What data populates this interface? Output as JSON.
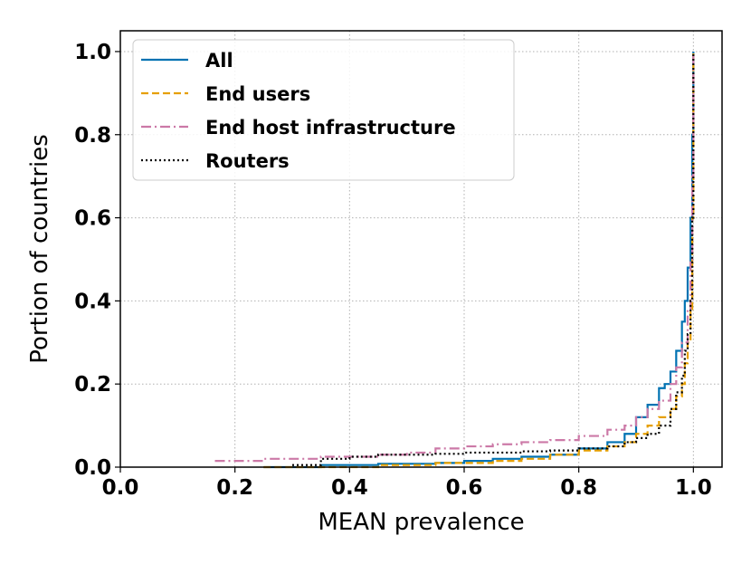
{
  "chart_data": {
    "type": "line",
    "xlabel": "MEAN prevalence",
    "ylabel": "Portion of countries",
    "xlim": [
      0.0,
      1.05
    ],
    "ylim": [
      0.0,
      1.05
    ],
    "xticks": [
      "0.0",
      "0.2",
      "0.4",
      "0.6",
      "0.8",
      "1.0"
    ],
    "yticks": [
      "0.0",
      "0.2",
      "0.4",
      "0.6",
      "0.8",
      "1.0"
    ],
    "grid": true,
    "legend_position": "top-left",
    "series": [
      {
        "name": "All",
        "color": "#0072B2",
        "dash": "solid",
        "x": [
          0.25,
          0.35,
          0.45,
          0.55,
          0.6,
          0.65,
          0.7,
          0.75,
          0.8,
          0.85,
          0.88,
          0.9,
          0.92,
          0.94,
          0.95,
          0.96,
          0.97,
          0.98,
          0.985,
          0.99,
          0.995,
          0.998,
          1.0
        ],
        "y": [
          0.0,
          0.005,
          0.008,
          0.01,
          0.015,
          0.02,
          0.025,
          0.03,
          0.045,
          0.06,
          0.08,
          0.12,
          0.15,
          0.19,
          0.2,
          0.23,
          0.28,
          0.35,
          0.4,
          0.48,
          0.6,
          0.8,
          1.0
        ]
      },
      {
        "name": "End users",
        "color": "#E69F00",
        "dash": "dashed",
        "x": [
          0.25,
          0.35,
          0.45,
          0.55,
          0.6,
          0.65,
          0.7,
          0.75,
          0.8,
          0.85,
          0.88,
          0.9,
          0.92,
          0.94,
          0.96,
          0.97,
          0.98,
          0.985,
          0.99,
          0.995,
          0.998,
          1.0
        ],
        "y": [
          0.0,
          0.0,
          0.005,
          0.01,
          0.01,
          0.015,
          0.02,
          0.03,
          0.04,
          0.05,
          0.06,
          0.08,
          0.1,
          0.12,
          0.14,
          0.17,
          0.2,
          0.25,
          0.3,
          0.38,
          0.6,
          1.0
        ]
      },
      {
        "name": "End host infrastructure",
        "color": "#CC79A7",
        "dash": "dashdot",
        "x": [
          0.165,
          0.2,
          0.25,
          0.3,
          0.35,
          0.4,
          0.45,
          0.5,
          0.55,
          0.6,
          0.65,
          0.7,
          0.75,
          0.8,
          0.85,
          0.88,
          0.9,
          0.92,
          0.94,
          0.96,
          0.97,
          0.98,
          0.99,
          0.995,
          0.998,
          1.0
        ],
        "y": [
          0.015,
          0.015,
          0.02,
          0.02,
          0.025,
          0.025,
          0.03,
          0.035,
          0.045,
          0.05,
          0.055,
          0.06,
          0.065,
          0.075,
          0.09,
          0.1,
          0.12,
          0.14,
          0.16,
          0.2,
          0.24,
          0.3,
          0.38,
          0.5,
          0.7,
          1.0
        ]
      },
      {
        "name": "Routers",
        "color": "#000000",
        "dash": "dotted",
        "x": [
          0.3,
          0.35,
          0.4,
          0.45,
          0.5,
          0.55,
          0.6,
          0.65,
          0.7,
          0.75,
          0.8,
          0.85,
          0.88,
          0.9,
          0.92,
          0.94,
          0.96,
          0.97,
          0.98,
          0.985,
          0.99,
          0.995,
          0.998,
          1.0
        ],
        "y": [
          0.005,
          0.02,
          0.025,
          0.03,
          0.03,
          0.032,
          0.035,
          0.035,
          0.038,
          0.04,
          0.045,
          0.05,
          0.06,
          0.07,
          0.08,
          0.1,
          0.14,
          0.18,
          0.22,
          0.28,
          0.32,
          0.4,
          0.6,
          1.0
        ]
      }
    ]
  }
}
